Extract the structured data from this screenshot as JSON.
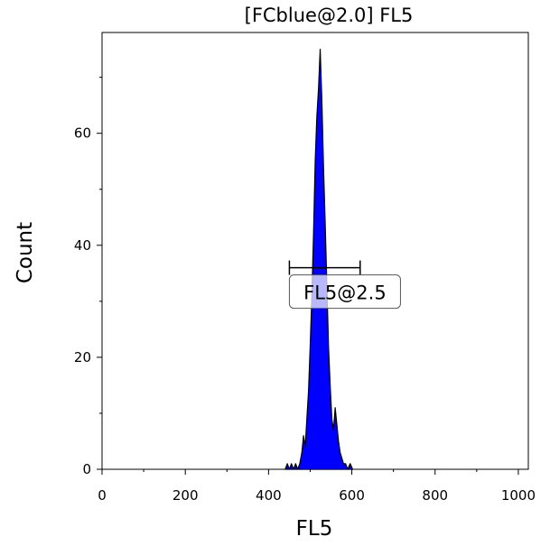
{
  "chart_data": {
    "type": "histogram",
    "title": "[FCblue@2.0] FL5",
    "xlabel": "FL5",
    "ylabel": "Count",
    "xlim": [
      0,
      1024
    ],
    "ylim": [
      0,
      78
    ],
    "x_ticks": [
      0,
      200,
      400,
      600,
      800,
      1000
    ],
    "x_tick_labels": [
      "0",
      "200",
      "400",
      "600",
      "800",
      "1000"
    ],
    "y_ticks": [
      0,
      20,
      40,
      60
    ],
    "y_tick_labels": [
      "0",
      "20",
      "40",
      "60"
    ],
    "grid": false,
    "fill_color": "#0000ff",
    "outline_color": "#000000",
    "series": [
      {
        "x": [
          440,
          445,
          450,
          455,
          460,
          465,
          470,
          475,
          480,
          484,
          488,
          492,
          496,
          500,
          504,
          508,
          512,
          516,
          520,
          524,
          528,
          532,
          536,
          540,
          544,
          548,
          552,
          556,
          560,
          564,
          568,
          572,
          576,
          580,
          585,
          590,
          596,
          602
        ],
        "counts": [
          0,
          1,
          0,
          1,
          0,
          1,
          0,
          1,
          3,
          6,
          4,
          9,
          14,
          22,
          31,
          42,
          55,
          63,
          68,
          75,
          66,
          54,
          44,
          33,
          22,
          15,
          9,
          7,
          11,
          8,
          5,
          3,
          2,
          1,
          1,
          0,
          1,
          0
        ]
      }
    ],
    "gate": {
      "label": "FL5@2.5",
      "x_start": 450,
      "x_end": 620,
      "y": 36
    }
  }
}
